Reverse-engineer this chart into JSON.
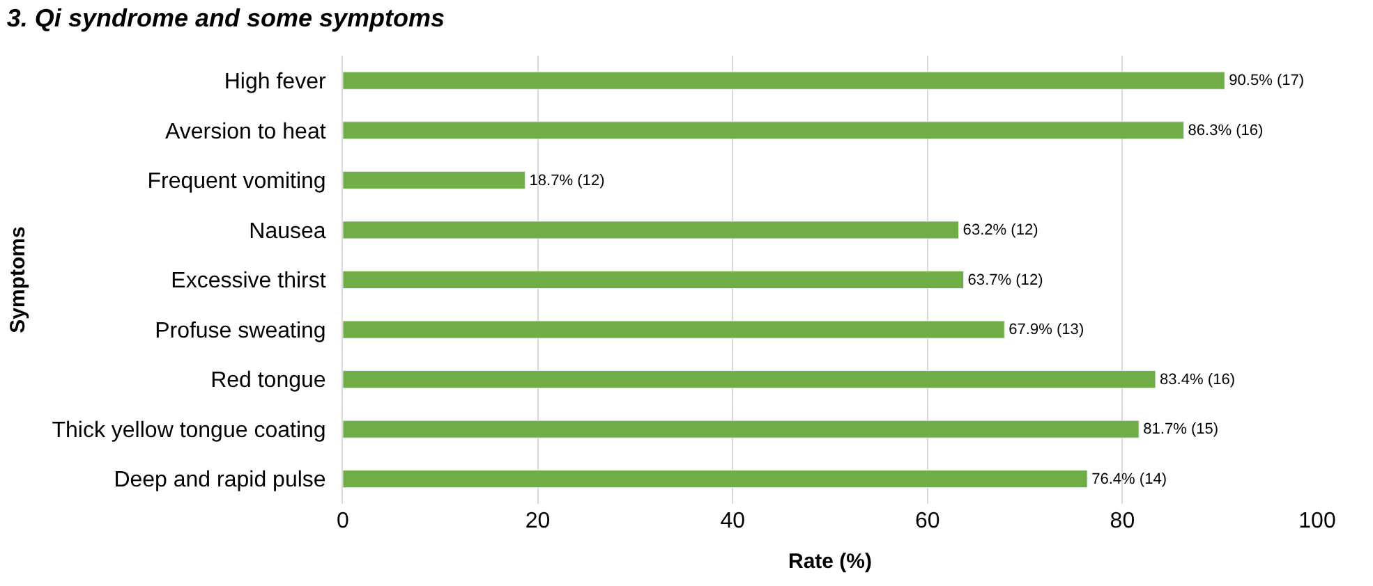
{
  "chart_data": {
    "type": "bar",
    "orientation": "horizontal",
    "title": "3. Qi syndrome and some symptoms",
    "xlabel": "Rate (%)",
    "ylabel": "Symptoms",
    "categories": [
      "High fever",
      "Aversion to heat",
      "Frequent vomiting",
      "Nausea",
      "Excessive thirst",
      "Profuse sweating",
      "Red tongue",
      "Thick yellow tongue coating",
      "Deep and rapid pulse"
    ],
    "values": [
      90.5,
      86.3,
      18.7,
      63.2,
      63.7,
      67.9,
      83.4,
      81.7,
      76.4
    ],
    "value_labels": [
      "90.5% (17)",
      "86.3% (16)",
      "18.7% (12)",
      "63.2% (12)",
      "63.7% (12)",
      "67.9% (13)",
      "83.4% (16)",
      "81.7% (15)",
      "76.4% (14)"
    ],
    "color": "#70ad47",
    "xlim": [
      0,
      100
    ],
    "xticks": [
      0,
      20,
      40,
      60,
      80,
      100
    ],
    "grid": "x",
    "legend": false
  }
}
